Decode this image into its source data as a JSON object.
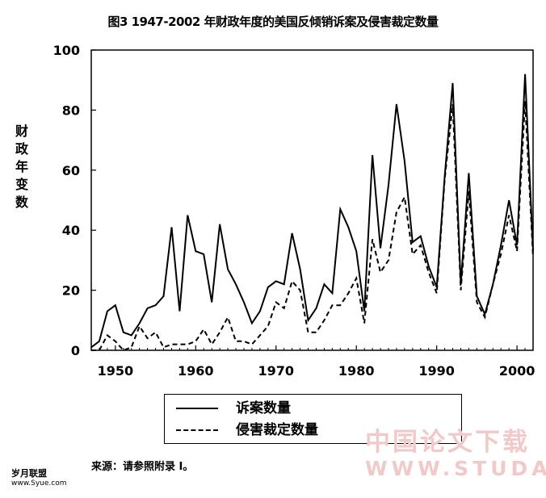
{
  "chart_data": {
    "type": "line",
    "title": "图3 1947-2002 年财政年度的美国反倾销诉案及侵害裁定数量",
    "ylabel": "财政年变数",
    "xlabel": "",
    "x": [
      1947,
      1948,
      1949,
      1950,
      1951,
      1952,
      1953,
      1954,
      1955,
      1956,
      1957,
      1958,
      1959,
      1960,
      1961,
      1962,
      1963,
      1964,
      1965,
      1966,
      1967,
      1968,
      1969,
      1970,
      1971,
      1972,
      1973,
      1974,
      1975,
      1976,
      1977,
      1978,
      1979,
      1980,
      1981,
      1982,
      1983,
      1984,
      1985,
      1986,
      1987,
      1988,
      1989,
      1990,
      1991,
      1992,
      1993,
      1994,
      1995,
      1996,
      1997,
      1998,
      1999,
      2000,
      2001,
      2002
    ],
    "series": [
      {
        "name": "诉案数量",
        "style": "solid",
        "values": [
          1,
          3,
          13,
          15,
          6,
          5,
          9,
          14,
          15,
          18,
          41,
          13,
          45,
          33,
          32,
          16,
          42,
          27,
          22,
          16,
          9,
          13,
          21,
          23,
          22,
          39,
          27,
          10,
          14,
          22,
          19,
          47,
          41,
          33,
          13,
          65,
          34,
          55,
          82,
          63,
          36,
          38,
          28,
          21,
          58,
          89,
          22,
          59,
          18,
          12,
          22,
          35,
          50,
          35,
          92,
          33
        ]
      },
      {
        "name": "侵害裁定数量",
        "style": "dashed",
        "values": [
          0,
          0,
          5,
          3,
          0,
          1,
          8,
          4,
          6,
          1,
          2,
          2,
          2,
          3,
          7,
          2,
          6,
          11,
          3,
          3,
          2,
          5,
          8,
          16,
          14,
          23,
          20,
          6,
          6,
          10,
          15,
          15,
          19,
          24,
          9,
          37,
          26,
          30,
          46,
          51,
          32,
          35,
          26,
          19,
          57,
          82,
          20,
          53,
          16,
          11,
          22,
          32,
          45,
          33,
          83,
          31
        ]
      }
    ],
    "xlim": [
      1947,
      2002
    ],
    "ylim": [
      0,
      100
    ],
    "xticks": [
      1950,
      1960,
      1970,
      1980,
      1990,
      2000
    ],
    "yticks": [
      0,
      20,
      40,
      60,
      80,
      100
    ],
    "grid": false,
    "legend_position": "bottom-center"
  },
  "source_note": "来源：请参照附录 I。",
  "corner_logo": {
    "name": "岁月联盟",
    "url": "www.Syue.com"
  },
  "watermark": {
    "cn": "中国论文下载",
    "en": "WWW.STUDA."
  },
  "colors": {
    "line": "#000000",
    "watermark": "#f2c9c9"
  }
}
